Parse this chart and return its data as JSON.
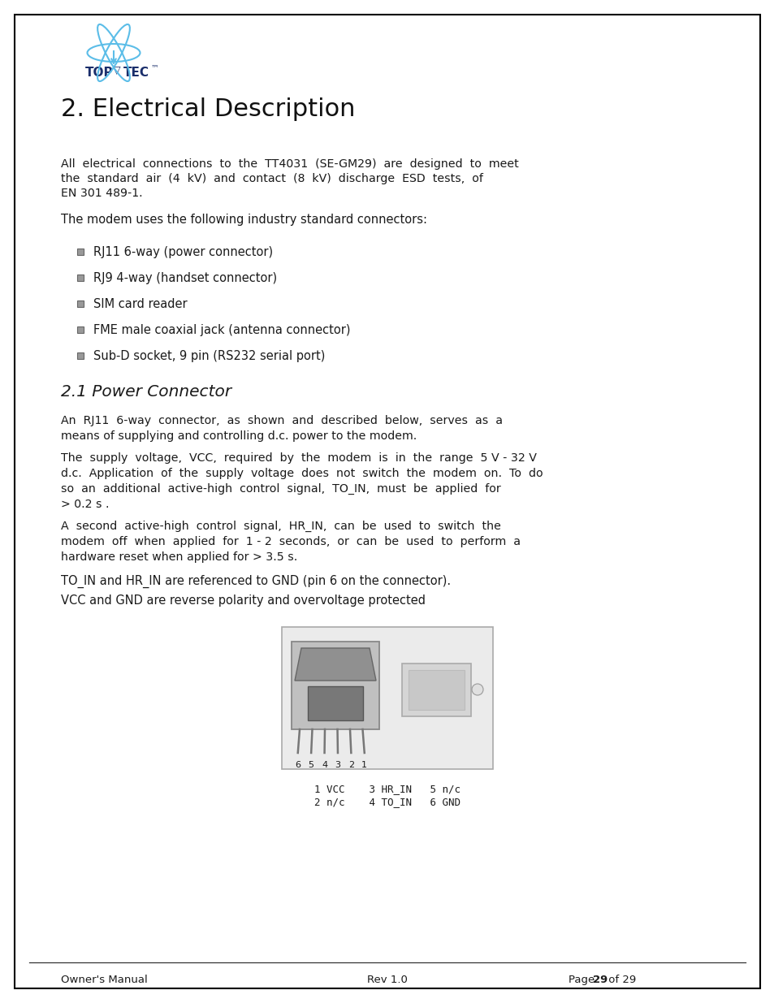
{
  "page_bg": "#ffffff",
  "border_color": "#000000",
  "title": "2. Electrical Description",
  "section_2_1": "2.1 Power Connector",
  "para1_lines": [
    "All  electrical  connections  to  the  TT4031  (SE-GM29)  are  designed  to  meet",
    "the  standard  air  (4  kV)  and  contact  (8  kV)  discharge  ESD  tests,  of",
    "EN 301 489-1."
  ],
  "para2": "The modem uses the following industry standard connectors:",
  "bullets": [
    "RJ11 6-way (power connector)",
    "RJ9 4-way (handset connector)",
    "SIM card reader",
    "FME male coaxial jack (antenna connector)",
    "Sub-D socket, 9 pin (RS232 serial port)"
  ],
  "para3_lines": [
    "An  RJ11  6-way  connector,  as  shown  and  described  below,  serves  as  a",
    "means of supplying and controlling d.c. power to the modem."
  ],
  "para4_lines": [
    "The  supply  voltage,  VCC,  required  by  the  modem  is  in  the  range  5 V - 32 V",
    "d.c.  Application  of  the  supply  voltage  does  not  switch  the  modem  on.  To  do",
    "so  an  additional  active-high  control  signal,  TO_IN,  must  be  applied  for",
    "> 0.2 s ."
  ],
  "para5_lines": [
    "A  second  active-high  control  signal,  HR_IN,  can  be  used  to  switch  the",
    "modem  off  when  applied  for  1 - 2  seconds,  or  can  be  used  to  perform  a",
    "hardware reset when applied for > 3.5 s."
  ],
  "para6": "TO_IN and HR_IN are referenced to GND (pin 6 on the connector).",
  "para7": "VCC and GND are reverse polarity and overvoltage protected",
  "caption_line1": "1 VCC    3 HR_IN   5 n/c",
  "caption_line2": "2 n/c    4 TO_IN   6 GND",
  "footer_left": "Owner's Manual",
  "footer_center": "Rev 1.0",
  "footer_right_pre": "Page ",
  "footer_right_bold": "29",
  "footer_right_post": " of 29",
  "text_color": "#1a1a1a",
  "logo_blue": "#5bbde8",
  "logo_dark": "#1a2e6b"
}
